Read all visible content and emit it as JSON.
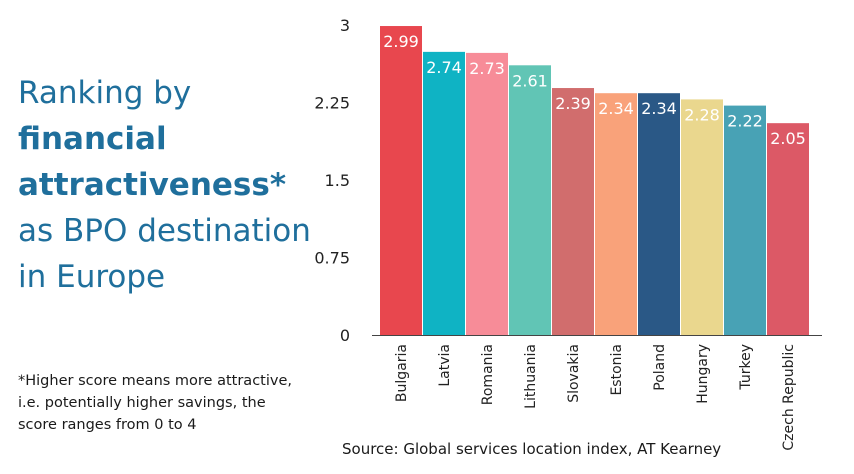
{
  "title": {
    "line1": "Ranking by",
    "line2": "financial",
    "line3": "attractiveness*",
    "line4": "as BPO destination",
    "line5": "in Europe"
  },
  "footnote": {
    "line1": "*Higher score means more attractive,",
    "line2": "i.e. potentially higher savings, the",
    "line3": "score ranges from 0 to 4"
  },
  "source": "Source: Global services location index, AT Kearney",
  "colors": {
    "title": "#1f6f9c",
    "highlight_label": "#e8474e"
  },
  "chart_data": {
    "type": "bar",
    "categories": [
      "Bulgaria",
      "Latvia",
      "Romania",
      "Lithuania",
      "Slovakia",
      "Estonia",
      "Poland",
      "Hungary",
      "Turkey",
      "Czech Republic"
    ],
    "values": [
      2.99,
      2.74,
      2.73,
      2.61,
      2.39,
      2.34,
      2.34,
      2.28,
      2.22,
      2.05
    ],
    "data_labels": [
      "2.99",
      "2.74",
      "2.73",
      "2.61",
      "2.39",
      "2.34",
      "2.34",
      "2.28",
      "2.22",
      "2.05"
    ],
    "bar_colors": [
      "#e8474e",
      "#0fb3c4",
      "#f78c98",
      "#61c5b5",
      "#d16d6d",
      "#f9a27a",
      "#2a5886",
      "#ead78e",
      "#48a2b5",
      "#dc5966"
    ],
    "highlight_category": "Bulgaria",
    "yticks": [
      0,
      0.75,
      1.5,
      2.25,
      3
    ],
    "ytick_labels": [
      "0",
      "0.75",
      "1.5",
      "2.25",
      "3"
    ],
    "ylim": [
      0,
      3
    ],
    "grid": false,
    "legend": "none",
    "xlabel": "",
    "ylabel": ""
  }
}
